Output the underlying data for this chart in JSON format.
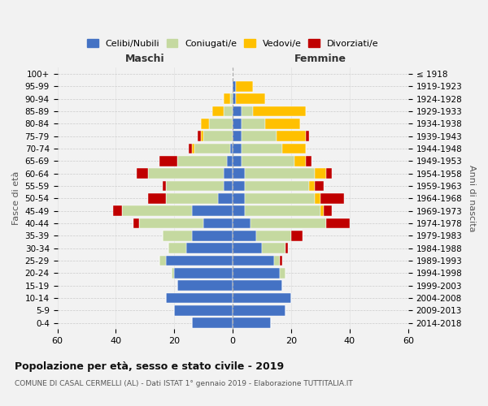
{
  "age_groups": [
    "0-4",
    "5-9",
    "10-14",
    "15-19",
    "20-24",
    "25-29",
    "30-34",
    "35-39",
    "40-44",
    "45-49",
    "50-54",
    "55-59",
    "60-64",
    "65-69",
    "70-74",
    "75-79",
    "80-84",
    "85-89",
    "90-94",
    "95-99",
    "100+"
  ],
  "birth_years": [
    "2014-2018",
    "2009-2013",
    "2004-2008",
    "1999-2003",
    "1994-1998",
    "1989-1993",
    "1984-1988",
    "1979-1983",
    "1974-1978",
    "1969-1973",
    "1964-1968",
    "1959-1963",
    "1954-1958",
    "1949-1953",
    "1944-1948",
    "1939-1943",
    "1934-1938",
    "1929-1933",
    "1924-1928",
    "1919-1923",
    "≤ 1918"
  ],
  "male": {
    "celibi": [
      14,
      20,
      23,
      19,
      20,
      23,
      16,
      14,
      10,
      14,
      5,
      3,
      3,
      2,
      1,
      0,
      0,
      0,
      0,
      0,
      0
    ],
    "coniugati": [
      0,
      0,
      0,
      0,
      1,
      2,
      6,
      10,
      22,
      24,
      18,
      20,
      26,
      17,
      12,
      10,
      8,
      3,
      1,
      0,
      0
    ],
    "vedovi": [
      0,
      0,
      0,
      0,
      0,
      0,
      0,
      0,
      0,
      0,
      0,
      0,
      0,
      0,
      1,
      1,
      3,
      4,
      2,
      0,
      0
    ],
    "divorziati": [
      0,
      0,
      0,
      0,
      0,
      0,
      0,
      0,
      2,
      3,
      6,
      1,
      4,
      6,
      1,
      1,
      0,
      0,
      0,
      0,
      0
    ]
  },
  "female": {
    "nubili": [
      13,
      18,
      20,
      17,
      16,
      14,
      10,
      8,
      6,
      4,
      4,
      4,
      4,
      3,
      3,
      3,
      3,
      3,
      1,
      1,
      0
    ],
    "coniugate": [
      0,
      0,
      0,
      0,
      2,
      2,
      8,
      12,
      26,
      26,
      24,
      22,
      24,
      18,
      14,
      12,
      8,
      4,
      0,
      0,
      0
    ],
    "vedove": [
      0,
      0,
      0,
      0,
      0,
      0,
      0,
      0,
      0,
      1,
      2,
      2,
      4,
      4,
      8,
      10,
      12,
      18,
      10,
      6,
      0
    ],
    "divorziate": [
      0,
      0,
      0,
      0,
      0,
      1,
      1,
      4,
      8,
      3,
      8,
      3,
      2,
      2,
      0,
      1,
      0,
      0,
      0,
      0,
      0
    ]
  },
  "colors": {
    "celibi": "#4472c4",
    "coniugati": "#c5d9a0",
    "vedovi": "#ffc000",
    "divorziati": "#c00000"
  },
  "xlim": 60,
  "title": "Popolazione per età, sesso e stato civile - 2019",
  "subtitle": "COMUNE DI CASAL CERMELLI (AL) - Dati ISTAT 1° gennaio 2019 - Elaborazione TUTTITALIA.IT",
  "xlabel_left": "Maschi",
  "xlabel_right": "Femmine",
  "ylabel_left": "Fasce di età",
  "ylabel_right": "Anni di nascita",
  "legend_labels": [
    "Celibi/Nubili",
    "Coniugati/e",
    "Vedovi/e",
    "Divorziati/e"
  ],
  "bg_color": "#f2f2f2"
}
